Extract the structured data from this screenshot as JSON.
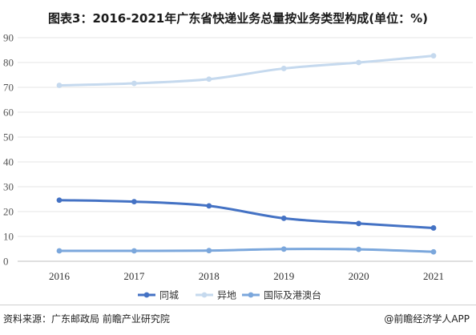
{
  "title": "图表3：2016-2021年广东省快递业务总量按业务类型构成(单位：%)",
  "source": "资料来源：广东邮政局 前瞻产业研究院",
  "brand": "@前瞻经济学人APP",
  "colors": {
    "same_city": "#4472C4",
    "intercity": "#C5D9EE",
    "international": "#7BA7DC",
    "grid": "#E4E4E4",
    "axis": "#BFBFBF"
  },
  "chart_data": {
    "type": "line",
    "title": "图表3：2016-2021年广东省快递业务总量按业务类型构成(单位：%)",
    "x": [
      "2016",
      "2017",
      "2018",
      "2019",
      "2020",
      "2021"
    ],
    "ylim": [
      0,
      90
    ],
    "yticks": [
      0,
      10,
      20,
      30,
      40,
      50,
      60,
      70,
      80,
      90
    ],
    "grid": true,
    "legend": "bottom",
    "series": [
      {
        "name": "同城",
        "color": "#4472C4",
        "values": [
          24.6,
          24.0,
          22.3,
          17.3,
          15.2,
          13.4
        ]
      },
      {
        "name": "异地",
        "color": "#C5D9EE",
        "values": [
          70.8,
          71.6,
          73.3,
          77.6,
          80.0,
          82.7
        ]
      },
      {
        "name": "国际及港澳台",
        "color": "#7BA7DC",
        "values": [
          4.2,
          4.2,
          4.3,
          4.9,
          4.8,
          3.8
        ]
      }
    ]
  }
}
